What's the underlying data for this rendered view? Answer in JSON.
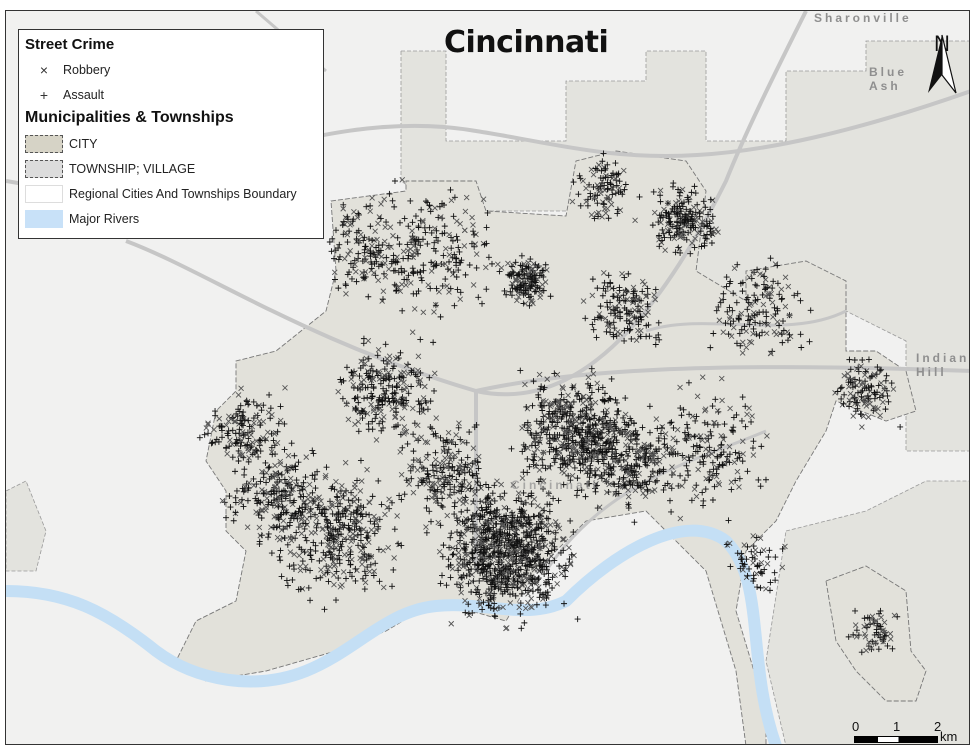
{
  "map": {
    "title": "Cincinnati",
    "place_labels": {
      "sharonville": "Sharonville",
      "blue_ash": [
        "Blue",
        "Ash"
      ],
      "indian_hill": [
        "Indian",
        "Hill"
      ],
      "cincinnati_center": "Cincinnati"
    },
    "colors": {
      "background": "#f1f1f0",
      "city_fill": "#e2e1da",
      "township_fill": "#dcdcdc",
      "river": "#c4dff5",
      "roads": "#c4c4c4",
      "points": "#111111"
    }
  },
  "legend": {
    "street_crime_heading": "Street Crime",
    "street_crime_items": [
      {
        "symbol": "×",
        "label": "Robbery"
      },
      {
        "symbol": "+",
        "label": "Assault"
      }
    ],
    "municipalities_heading": "Municipalities & Townships",
    "municipality_items": [
      {
        "label": "CITY",
        "color": "#d6d3c6"
      },
      {
        "label": "TOWNSHIP; VILLAGE",
        "color": "#dcdcdc"
      },
      {
        "label": "Regional Cities And Townships Boundary",
        "color": "#ffffff"
      },
      {
        "label": "Major Rivers",
        "color": "#c8e1f8"
      }
    ]
  },
  "north_arrow": {
    "label": "N"
  },
  "scale_bar": {
    "ticks": [
      "0",
      "1",
      "2"
    ],
    "unit": "km"
  }
}
